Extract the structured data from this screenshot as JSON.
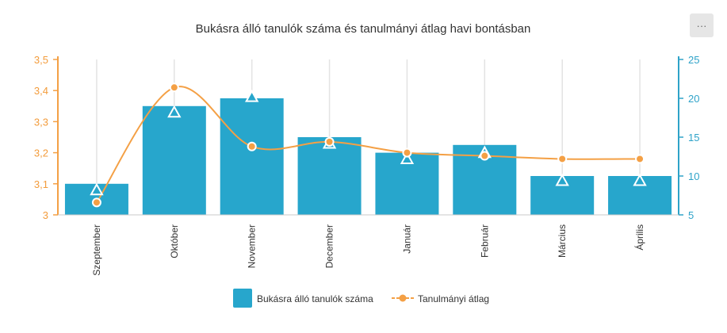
{
  "menu": {
    "icon": "more-dots-icon",
    "label": "···"
  },
  "chart_data": {
    "type": "bar",
    "title": "Bukásra álló tanulók száma és tanulmányi átlag havi bontásban",
    "categories": [
      "Szeptember",
      "Október",
      "November",
      "December",
      "Január",
      "Február",
      "Március",
      "Április"
    ],
    "series": [
      {
        "name": "Bukásra álló tanulók száma",
        "type": "bar",
        "axis": "right",
        "values": [
          9,
          19,
          20,
          15,
          13,
          14,
          10,
          10
        ],
        "color": "#27a6cc"
      },
      {
        "name": "Tanulmányi átlag",
        "type": "line",
        "axis": "left",
        "values": [
          3.04,
          3.41,
          3.22,
          3.235,
          3.2,
          3.19,
          3.18,
          3.18
        ],
        "color": "#f4a045"
      }
    ],
    "triangle_markers": [
      3.08,
      3.33,
      3.38,
      3.23,
      3.18,
      3.2,
      3.11,
      3.11
    ],
    "y_left": {
      "min": 3,
      "max": 3.5,
      "ticks": [
        "3",
        "3,1",
        "3,2",
        "3,3",
        "3,4",
        "3,5"
      ],
      "color": "#f4a045"
    },
    "y_right": {
      "min": 5,
      "max": 25,
      "ticks": [
        "5",
        "10",
        "15",
        "20",
        "25"
      ],
      "color": "#2fa3c9"
    },
    "legend_position": "bottom",
    "grid": "vertical"
  }
}
